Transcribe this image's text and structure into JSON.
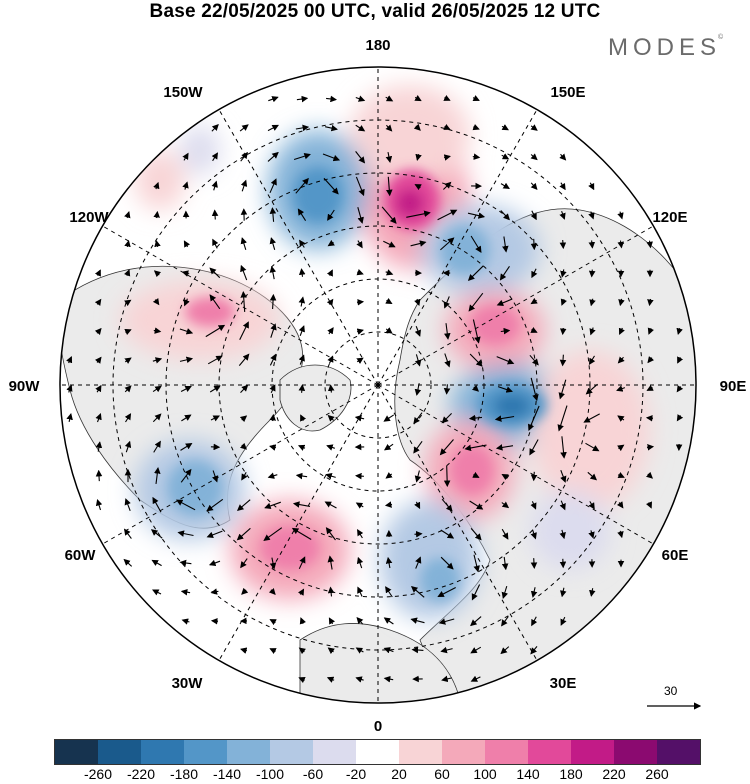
{
  "title": "Base 22/05/2025 00 UTC, valid 26/05/2025 12 UTC",
  "brand": "MODES",
  "brand_mark": "©",
  "longitude_labels": {
    "top": "180",
    "bottom": "0",
    "left": "90W",
    "right": "90E",
    "upper_left_1": "150W",
    "upper_left_2": "120W",
    "lower_left_1": "60W",
    "lower_left_2": "30W",
    "upper_right_1": "150E",
    "upper_right_2": "120E",
    "lower_right_1": "60E",
    "lower_right_2": "30E"
  },
  "reference_vector": {
    "label": "30",
    "icon": "arrow-right-icon"
  },
  "colorbar": {
    "ticks": [
      "-260",
      "-220",
      "-180",
      "-140",
      "-100",
      "-60",
      "-20",
      "20",
      "60",
      "100",
      "140",
      "180",
      "220",
      "260"
    ],
    "colors": [
      "#16334f",
      "#1a5a8c",
      "#2f78b0",
      "#5396c8",
      "#83b2d8",
      "#b4c9e4",
      "#dcdcee",
      "#ffffff",
      "#f8d4d6",
      "#f4a9ba",
      "#ef7faa",
      "#e2499a",
      "#c21b87",
      "#8b0a70",
      "#541068"
    ]
  },
  "anomaly_centres": [
    {
      "sign": "positive",
      "level": 220,
      "lon": 160,
      "lat": 57
    },
    {
      "sign": "negative",
      "level": -140,
      "lon": -160,
      "lat": 54
    },
    {
      "sign": "negative",
      "level": -100,
      "lon": 140,
      "lat": 52
    },
    {
      "sign": "positive",
      "level": 140,
      "lon": 110,
      "lat": 62
    },
    {
      "sign": "negative",
      "level": -180,
      "lon": 80,
      "lat": 56
    },
    {
      "sign": "positive",
      "level": 140,
      "lon": 45,
      "lat": 58
    },
    {
      "sign": "negative",
      "level": -100,
      "lon": 15,
      "lat": 45
    },
    {
      "sign": "positive",
      "level": 140,
      "lon": -30,
      "lat": 45
    },
    {
      "sign": "negative",
      "level": -140,
      "lon": -65,
      "lat": 42
    },
    {
      "sign": "positive",
      "level": 100,
      "lon": -110,
      "lat": 50
    },
    {
      "sign": "negative",
      "level": -60,
      "lon": -80,
      "lat": 63
    }
  ]
}
